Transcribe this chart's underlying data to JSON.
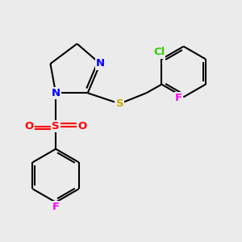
{
  "bg_color": "#ebebeb",
  "bond_color": "#000000",
  "bond_width": 1.5,
  "atom_colors": {
    "N": "#0000ff",
    "S_thio": "#ccaa00",
    "S_sulfonyl": "#ff0000",
    "O": "#ff0000",
    "F": "#ff00ff",
    "Cl": "#33cc00"
  },
  "fig_width": 3.0,
  "fig_height": 3.0,
  "dpi": 100,
  "xlim": [
    0,
    9
  ],
  "ylim": [
    0,
    9
  ]
}
